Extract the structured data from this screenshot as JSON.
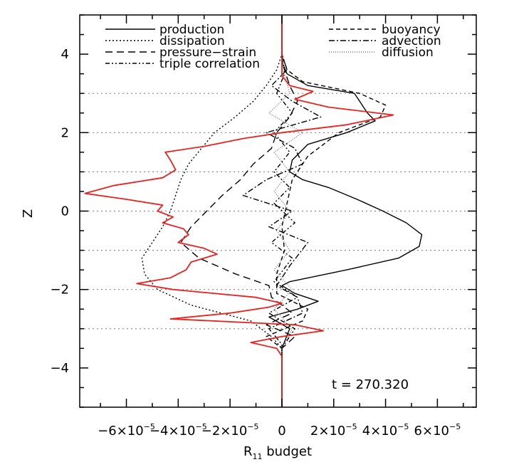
{
  "chart_data": {
    "type": "line",
    "title": "",
    "xlabel": "R",
    "xlabel_sub": "11",
    "xlabel_suffix": " budget",
    "ylabel": "Z",
    "xlim": [
      -7.8e-05,
      7.5e-05
    ],
    "ylim": [
      -5,
      5
    ],
    "x_ticks": [
      {
        "value": -6e-05,
        "mant": "−6×10",
        "exp": "−5"
      },
      {
        "value": -4e-05,
        "mant": "−4×10",
        "exp": "−5"
      },
      {
        "value": -2e-05,
        "mant": "−2×10",
        "exp": "−5"
      },
      {
        "value": 0,
        "mant": "0",
        "exp": ""
      },
      {
        "value": 2e-05,
        "mant": "2×10",
        "exp": "−5"
      },
      {
        "value": 4e-05,
        "mant": "4×10",
        "exp": "−5"
      },
      {
        "value": 6e-05,
        "mant": "6×10",
        "exp": "−5"
      }
    ],
    "y_ticks": [
      {
        "value": -4,
        "label": "−4"
      },
      {
        "value": -2,
        "label": "−2"
      },
      {
        "value": 0,
        "label": "0"
      },
      {
        "value": 2,
        "label": "2"
      },
      {
        "value": 4,
        "label": "4"
      }
    ],
    "grid_lines_y": [
      -3,
      -2,
      -1,
      0,
      1,
      2,
      3
    ],
    "annotation": "t = 270.320",
    "legend_position": "top",
    "legend_rows": [
      {
        "left": "production",
        "right": "buoyancy"
      },
      {
        "left": "dissipation",
        "right": "advection"
      },
      {
        "left": "pressure−strain",
        "right": "diffusion"
      },
      {
        "left": "triple correlation",
        "right": ""
      }
    ],
    "series": [
      {
        "name": "production",
        "color": "#000000",
        "dash": "",
        "points": [
          [
            -5.0,
            0
          ],
          [
            -3.5,
            0
          ],
          [
            -3.0,
            3e-06
          ],
          [
            -2.7,
            -5e-06
          ],
          [
            -2.5,
            6e-06
          ],
          [
            -2.3,
            1.4e-05
          ],
          [
            -2.1,
            5e-06
          ],
          [
            -1.9,
            0
          ],
          [
            -1.8,
            3e-06
          ],
          [
            -1.5,
            2.5e-05
          ],
          [
            -1.2,
            4.5e-05
          ],
          [
            -0.9,
            5.3e-05
          ],
          [
            -0.6,
            5.4e-05
          ],
          [
            -0.3,
            4.8e-05
          ],
          [
            0,
            3.9e-05
          ],
          [
            0.3,
            2.9e-05
          ],
          [
            0.6,
            1.8e-05
          ],
          [
            0.8,
            8e-06
          ],
          [
            1.0,
            3e-06
          ],
          [
            1.3,
            4e-06
          ],
          [
            1.7,
            1e-05
          ],
          [
            2.0,
            2.5e-05
          ],
          [
            2.3,
            3.6e-05
          ],
          [
            2.5,
            3.3e-05
          ],
          [
            2.8,
            3e-05
          ],
          [
            3.0,
            2.8e-05
          ],
          [
            3.2,
            1e-05
          ],
          [
            3.5,
            2e-06
          ],
          [
            3.8,
            0
          ],
          [
            5.0,
            0
          ]
        ]
      },
      {
        "name": "dissipation",
        "color": "#000000",
        "dash": "2,3",
        "points": [
          [
            -5.0,
            0
          ],
          [
            -3.5,
            0
          ],
          [
            -3.2,
            -4e-06
          ],
          [
            -2.8,
            -1.2e-05
          ],
          [
            -2.4,
            -3.5e-05
          ],
          [
            -2.0,
            -4.8e-05
          ],
          [
            -1.6,
            -5.3e-05
          ],
          [
            -1.2,
            -5.4e-05
          ],
          [
            -0.8,
            -5e-05
          ],
          [
            -0.4,
            -4.6e-05
          ],
          [
            0,
            -4.3e-05
          ],
          [
            0.4,
            -4.1e-05
          ],
          [
            0.8,
            -3.9e-05
          ],
          [
            1.2,
            -3.6e-05
          ],
          [
            1.6,
            -3.1e-05
          ],
          [
            2.0,
            -2.6e-05
          ],
          [
            2.4,
            -1.8e-05
          ],
          [
            2.8,
            -1.1e-05
          ],
          [
            3.2,
            -6e-06
          ],
          [
            3.6,
            -2e-06
          ],
          [
            4.0,
            0
          ],
          [
            5.0,
            0
          ]
        ]
      },
      {
        "name": "pressure−strain",
        "color": "#000000",
        "dash": "10,6",
        "points": [
          [
            -5.0,
            0
          ],
          [
            -3.5,
            0
          ],
          [
            -3.2,
            5e-06
          ],
          [
            -2.9,
            -6e-06
          ],
          [
            -2.6,
            4e-06
          ],
          [
            -2.2,
            -4e-06
          ],
          [
            -1.9,
            -5e-06
          ],
          [
            -1.6,
            -1.8e-05
          ],
          [
            -1.2,
            -3.2e-05
          ],
          [
            -0.8,
            -3.9e-05
          ],
          [
            -0.4,
            -3.5e-05
          ],
          [
            0,
            -2.9e-05
          ],
          [
            0.4,
            -2.3e-05
          ],
          [
            0.8,
            -1.6e-05
          ],
          [
            1.2,
            -1.1e-05
          ],
          [
            1.6,
            -4e-06
          ],
          [
            2.0,
            -2e-06
          ],
          [
            2.4,
            3e-06
          ],
          [
            2.8,
            6e-06
          ],
          [
            3.2,
            3e-06
          ],
          [
            3.6,
            1e-06
          ],
          [
            4.0,
            0
          ],
          [
            5.0,
            0
          ]
        ]
      },
      {
        "name": "triple correlation",
        "color": "#000000",
        "dash": "6,3,2,3,2,3",
        "points": [
          [
            -5.0,
            0
          ],
          [
            -3.5,
            0
          ],
          [
            -3.0,
            5e-06
          ],
          [
            -2.6,
            -5e-06
          ],
          [
            -2.2,
            6e-06
          ],
          [
            -1.8,
            -3e-06
          ],
          [
            -1.2,
            4e-06
          ],
          [
            -0.8,
            -4e-06
          ],
          [
            -0.3,
            5e-06
          ],
          [
            0.2,
            -3e-06
          ],
          [
            0.6,
            3e-06
          ],
          [
            1.0,
            -3e-06
          ],
          [
            1.5,
            3e-06
          ],
          [
            2.0,
            -3e-06
          ],
          [
            2.5,
            4e-06
          ],
          [
            3.0,
            -2e-06
          ],
          [
            3.5,
            1e-06
          ],
          [
            4.0,
            0
          ],
          [
            5.0,
            0
          ]
        ]
      },
      {
        "name": "buoyancy",
        "color": "#000000",
        "dash": "6,4",
        "points": [
          [
            -5.0,
            0
          ],
          [
            -3.5,
            0
          ],
          [
            -3.2,
            -6e-06
          ],
          [
            -2.8,
            8e-06
          ],
          [
            -2.5,
            1e-05
          ],
          [
            -2.1,
            -2e-06
          ],
          [
            -1.6,
            -2e-06
          ],
          [
            -1.0,
            1e-06
          ],
          [
            -0.4,
            0
          ],
          [
            0.2,
            2e-06
          ],
          [
            0.8,
            4e-06
          ],
          [
            1.4,
            1e-05
          ],
          [
            2.0,
            2.2e-05
          ],
          [
            2.4,
            3.8e-05
          ],
          [
            2.7,
            4e-05
          ],
          [
            3.0,
            3e-05
          ],
          [
            3.3,
            8e-06
          ],
          [
            3.6,
            2e-06
          ],
          [
            4.0,
            0
          ],
          [
            5.0,
            0
          ]
        ]
      },
      {
        "name": "advection",
        "color": "#000000",
        "dash": "8,3,2,3",
        "points": [
          [
            -5.0,
            0
          ],
          [
            -3.4,
            0
          ],
          [
            -3.0,
            -5e-06
          ],
          [
            -2.6,
            8e-06
          ],
          [
            -2.2,
            6e-06
          ],
          [
            -1.9,
            -2e-06
          ],
          [
            -1.4,
            3e-06
          ],
          [
            -0.8,
            1e-05
          ],
          [
            -0.4,
            -5e-06
          ],
          [
            0,
            4e-06
          ],
          [
            0.4,
            -1.5e-05
          ],
          [
            0.8,
            -6e-06
          ],
          [
            1.2,
            8e-06
          ],
          [
            1.6,
            5e-06
          ],
          [
            2.0,
            -6e-06
          ],
          [
            2.4,
            1.5e-05
          ],
          [
            2.8,
            4e-06
          ],
          [
            3.2,
            -4e-06
          ],
          [
            3.6,
            2e-06
          ],
          [
            4.0,
            0
          ],
          [
            5.0,
            0
          ]
        ]
      },
      {
        "name": "diffusion",
        "color": "#777777",
        "dash": "1,2",
        "points": [
          [
            -5.0,
            0
          ],
          [
            -3.5,
            0
          ],
          [
            -3.0,
            4e-06
          ],
          [
            -2.5,
            -3e-06
          ],
          [
            -2.0,
            4e-06
          ],
          [
            -1.5,
            -3e-06
          ],
          [
            -1.0,
            3e-06
          ],
          [
            -0.5,
            -2e-06
          ],
          [
            0,
            3e-06
          ],
          [
            0.5,
            -3e-06
          ],
          [
            1.0,
            3e-06
          ],
          [
            1.5,
            -3e-06
          ],
          [
            2.0,
            8e-06
          ],
          [
            2.5,
            -5e-06
          ],
          [
            3.0,
            3e-06
          ],
          [
            3.5,
            1e-06
          ],
          [
            4.0,
            0
          ],
          [
            5.0,
            0
          ]
        ]
      },
      {
        "name": "",
        "color": "#e8231f",
        "dash": "",
        "points": [
          [
            -5.0,
            0
          ],
          [
            -3.7,
            0
          ],
          [
            -3.5,
            -2e-06
          ],
          [
            -3.35,
            -1.2e-05
          ],
          [
            -3.2,
            0
          ],
          [
            -3.05,
            1.6e-05
          ],
          [
            -2.9,
            5e-06
          ],
          [
            -2.75,
            -4.3e-05
          ],
          [
            -2.6,
            -2e-05
          ],
          [
            -2.45,
            -5e-06
          ],
          [
            -2.35,
            0
          ],
          [
            -2.2,
            -1e-05
          ],
          [
            -2.0,
            -4.2e-05
          ],
          [
            -1.85,
            -5.6e-05
          ],
          [
            -1.7,
            -4.3e-05
          ],
          [
            -1.5,
            -3.7e-05
          ],
          [
            -1.3,
            -3.5e-05
          ],
          [
            -1.1,
            -2.5e-05
          ],
          [
            -0.95,
            -3e-05
          ],
          [
            -0.8,
            -4e-05
          ],
          [
            -0.6,
            -3.6e-05
          ],
          [
            -0.45,
            -3.8e-05
          ],
          [
            -0.3,
            -4.6e-05
          ],
          [
            -0.15,
            -4.2e-05
          ],
          [
            0,
            -4.8e-05
          ],
          [
            0.15,
            -4.6e-05
          ],
          [
            0.3,
            -6e-05
          ],
          [
            0.45,
            -7.6e-05
          ],
          [
            0.65,
            -6.5e-05
          ],
          [
            0.85,
            -4.6e-05
          ],
          [
            1.05,
            -4.1e-05
          ],
          [
            1.3,
            -4.3e-05
          ],
          [
            1.5,
            -4.5e-05
          ],
          [
            1.65,
            -3e-05
          ],
          [
            1.85,
            -1.5e-05
          ],
          [
            2.0,
            0
          ],
          [
            2.2,
            2.5e-05
          ],
          [
            2.45,
            4.3e-05
          ],
          [
            2.65,
            1.8e-05
          ],
          [
            2.85,
            5e-06
          ],
          [
            3.05,
            1.2e-05
          ],
          [
            3.2,
            3e-06
          ],
          [
            3.45,
            0
          ],
          [
            3.8,
            0
          ],
          [
            5.0,
            0
          ]
        ]
      }
    ]
  }
}
